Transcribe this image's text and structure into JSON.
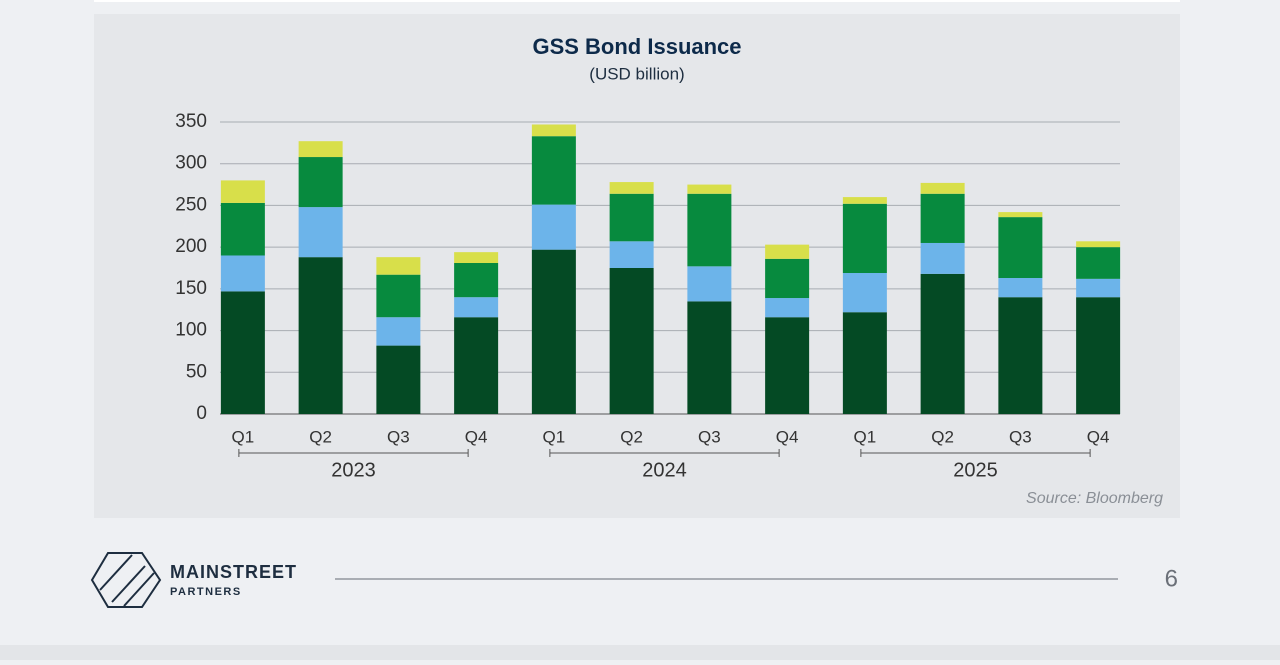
{
  "chart_data": {
    "type": "stacked_bar",
    "title": "GSS Bond Issuance",
    "subtitle": "(USD billion)",
    "categories": [
      "Q1",
      "Q2",
      "Q3",
      "Q4",
      "Q1",
      "Q2",
      "Q3",
      "Q4",
      "Q1",
      "Q2",
      "Q3",
      "Q4"
    ],
    "groups": [
      "2023",
      "2024",
      "2025"
    ],
    "series": [
      {
        "color": "#044a24",
        "values": [
          147,
          188,
          82,
          116,
          197,
          175,
          135,
          116,
          122,
          168,
          140,
          140
        ]
      },
      {
        "color": "#6cb4ea",
        "values": [
          43,
          60,
          34,
          24,
          54,
          32,
          42,
          23,
          47,
          37,
          23,
          22
        ]
      },
      {
        "color": "#078a3e",
        "values": [
          63,
          60,
          51,
          41,
          82,
          57,
          87,
          47,
          83,
          59,
          73,
          38
        ]
      },
      {
        "color": "#d8df4a",
        "values": [
          27,
          19,
          21,
          13,
          14,
          14,
          11,
          17,
          8,
          13,
          6,
          7
        ]
      }
    ],
    "ylim": [
      0,
      350
    ],
    "yticks": [
      0,
      50,
      100,
      150,
      200,
      250,
      300,
      350
    ],
    "grid": true,
    "source": "Source: Bloomberg"
  },
  "footer": {
    "brand": "MAINSTREET",
    "brand_sub": "PARTNERS",
    "page_number": 6
  }
}
